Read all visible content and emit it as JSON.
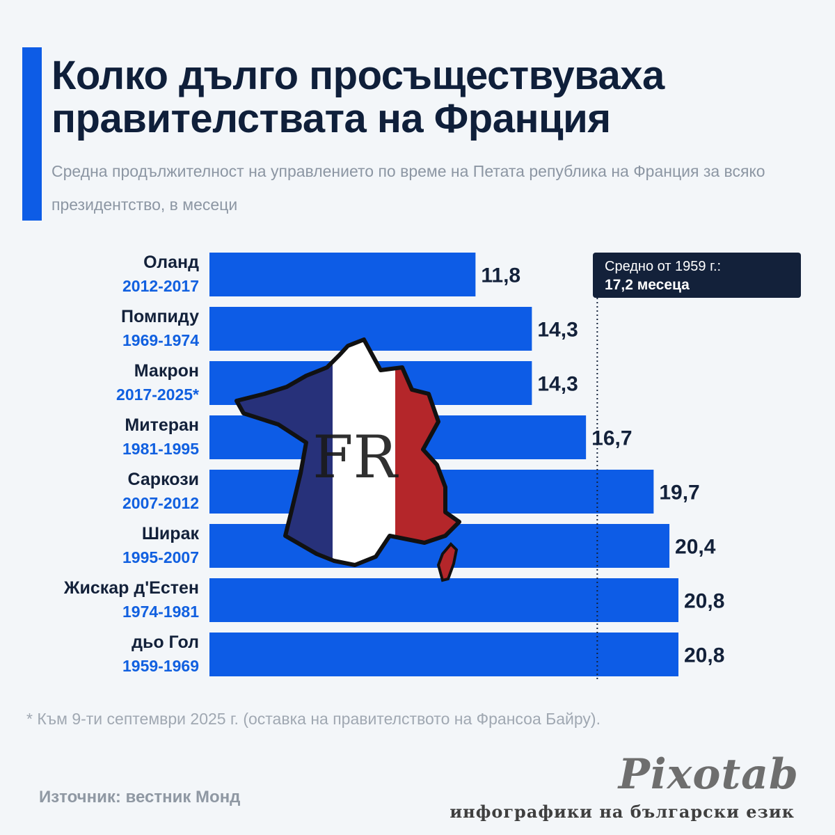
{
  "header": {
    "title": "Колко дълго просъществуваха правителствата на Франция",
    "subtitle": "Средна продължителност на управлението по време на Петата република на Франция за всяко президентство, в месеци"
  },
  "callout": {
    "line1": "Средно от 1959 г.:",
    "line2": "17,2 месеца"
  },
  "chart_data": {
    "type": "bar",
    "orientation": "horizontal",
    "categories": [
      "Оланд",
      "Помпиду",
      "Макрон",
      "Митеран",
      "Саркози",
      "Ширак",
      "Жискар д'Естен",
      "дьо Гол"
    ],
    "periods": [
      "2012-2017",
      "1969-1974",
      "2017-2025*",
      "1981-1995",
      "2007-2012",
      "1995-2007",
      "1974-1981",
      "1959-1969"
    ],
    "values": [
      11.8,
      14.3,
      14.3,
      16.7,
      19.7,
      20.4,
      20.8,
      20.8
    ],
    "value_labels": [
      "11,8",
      "14,3",
      "14,3",
      "16,7",
      "19,7",
      "20,4",
      "20,8",
      "20,8"
    ],
    "reference_line": 17.2,
    "xlim": [
      0,
      20.8
    ],
    "bar_color": "#0d5ce6",
    "grid": false
  },
  "footnote": "* Към 9-ти септември 2025 г. (оставка на правителството на Франсоа Байру).",
  "source": "Източник: вестник Монд",
  "brand": {
    "name": "Pixotab",
    "tagline": "инфографики на български език"
  },
  "map_overlay": {
    "label": "FR",
    "colors": [
      "#27317a",
      "#ffffff",
      "#b4262a"
    ]
  }
}
